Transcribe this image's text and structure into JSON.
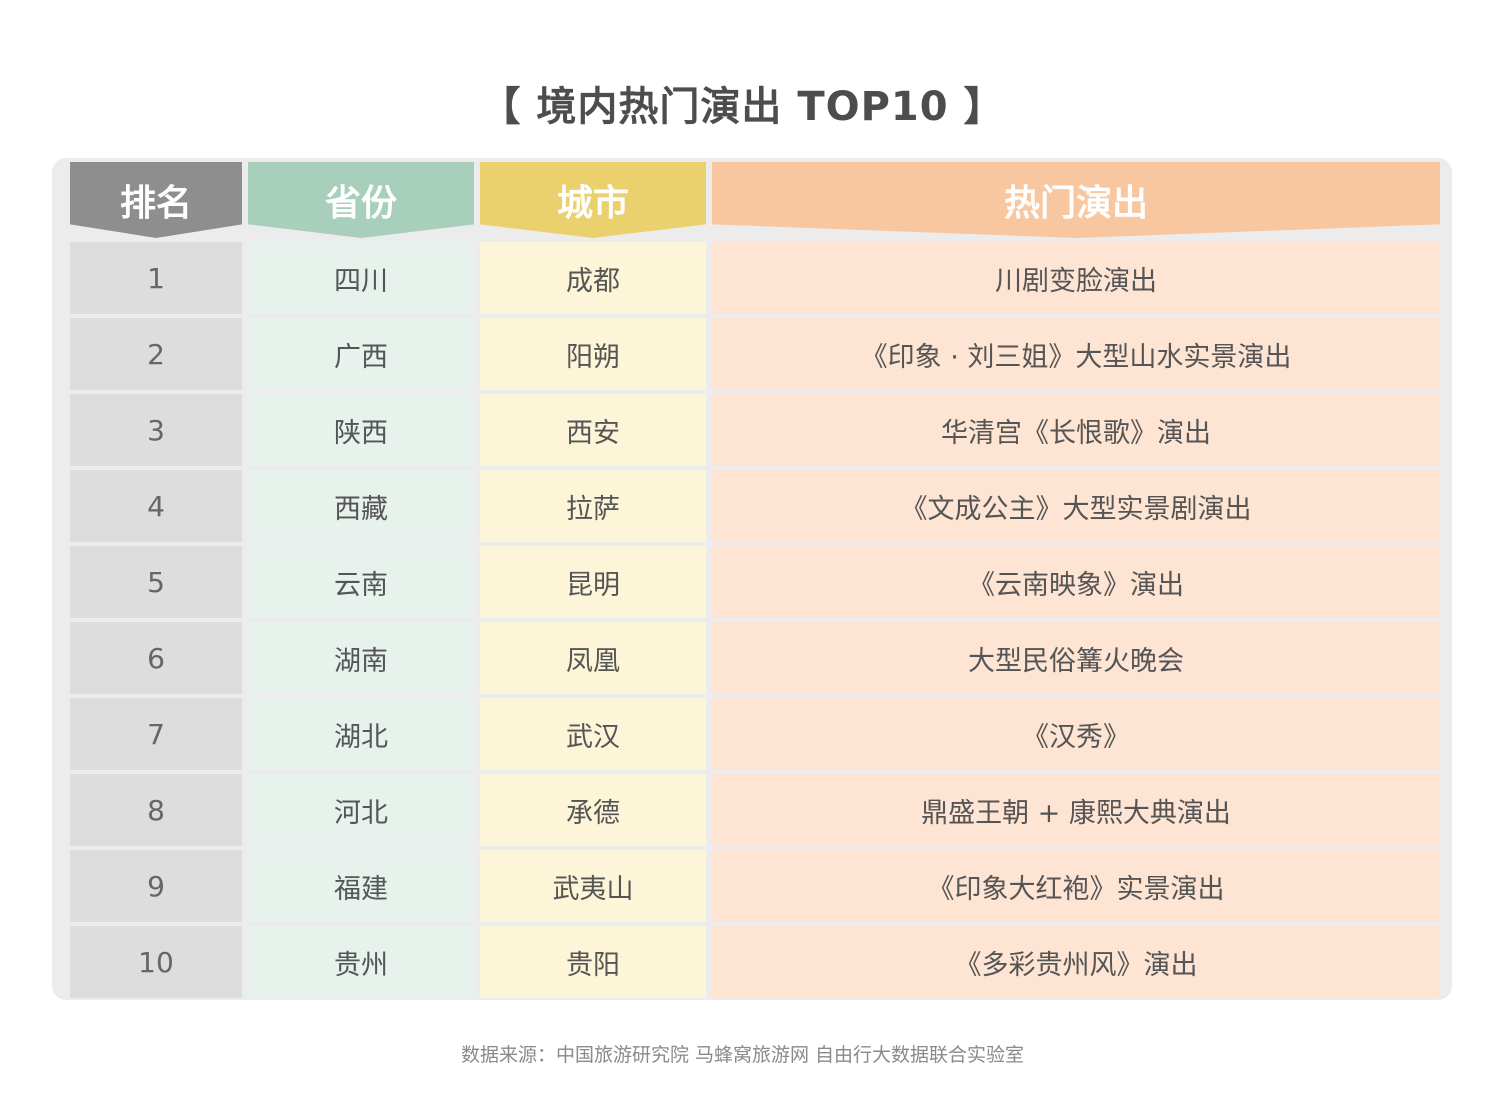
{
  "title": "【 境内热门演出 TOP10 】",
  "table": {
    "headers": {
      "rank": "排名",
      "province": "省份",
      "city": "城市",
      "show": "热门演出"
    },
    "rows": [
      {
        "rank": "1",
        "province": "四川",
        "city": "成都",
        "show": "川剧变脸演出"
      },
      {
        "rank": "2",
        "province": "广西",
        "city": "阳朔",
        "show": "《印象 · 刘三姐》大型山水实景演出"
      },
      {
        "rank": "3",
        "province": "陕西",
        "city": "西安",
        "show": "华清宫《长恨歌》演出"
      },
      {
        "rank": "4",
        "province": "西藏",
        "city": "拉萨",
        "show": "《文成公主》大型实景剧演出"
      },
      {
        "rank": "5",
        "province": "云南",
        "city": "昆明",
        "show": "《云南映象》演出"
      },
      {
        "rank": "6",
        "province": "湖南",
        "city": "凤凰",
        "show": "大型民俗篝火晚会"
      },
      {
        "rank": "7",
        "province": "湖北",
        "city": "武汉",
        "show": "《汉秀》"
      },
      {
        "rank": "8",
        "province": "河北",
        "city": "承德",
        "show": "鼎盛王朝 + 康熙大典演出"
      },
      {
        "rank": "9",
        "province": "福建",
        "city": "武夷山",
        "show": "《印象大红袍》实景演出"
      },
      {
        "rank": "10",
        "province": "贵州",
        "city": "贵阳",
        "show": "《多彩贵州风》演出"
      }
    ]
  },
  "source": "数据来源：中国旅游研究院 马蜂窝旅游网 自由行大数据联合实验室",
  "colors": {
    "rank_header": "#8e8e8e",
    "province_header": "#a7cfbb",
    "city_header": "#ebd06e",
    "show_header": "#f8c7a0"
  }
}
